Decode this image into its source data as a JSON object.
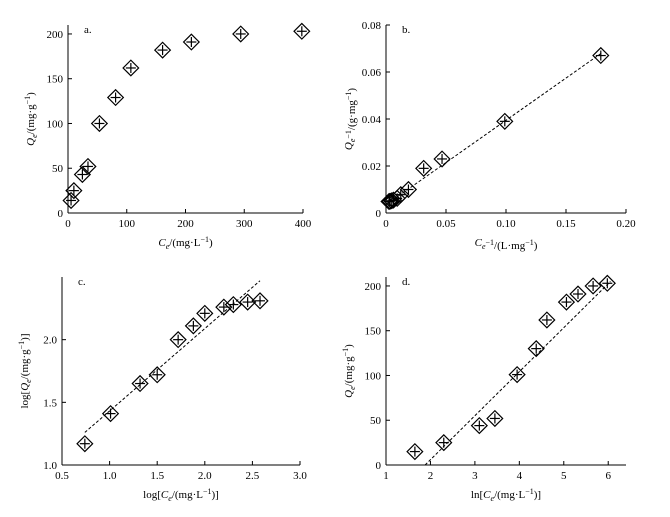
{
  "chart_data": [
    {
      "panel": "a.",
      "type": "scatter",
      "xlabel": {
        "main": "C",
        "sub": "e",
        "tail": "/(mg·L",
        "sup": "−1",
        "close": ")"
      },
      "ylabel": {
        "main": "Q",
        "sub": "e",
        "tail": "/(mg·g",
        "sup": "−1",
        "close": ")"
      },
      "xlim": [
        0,
        400
      ],
      "ylim": [
        0,
        210
      ],
      "xticks": [
        0,
        100,
        200,
        300,
        400
      ],
      "yticks": [
        0,
        50,
        100,
        150,
        200
      ],
      "xtick_labels": [
        "0",
        "100",
        "200",
        "300",
        "400"
      ],
      "ytick_labels": [
        "0",
        "50",
        "100",
        "150",
        "200"
      ],
      "x": [
        5.2,
        10.0,
        24.5,
        34.0,
        53.5,
        81.0,
        107.0,
        161.0,
        210.0,
        294.0,
        398.0
      ],
      "y": [
        14,
        25,
        43,
        52,
        100,
        129,
        162,
        182,
        191,
        200,
        203
      ],
      "fit": null
    },
    {
      "panel": "b.",
      "type": "scatter",
      "xlabel": {
        "main": "C",
        "sub": "e",
        "tail": "",
        "sup": "−1",
        "close": "/(L·mg",
        "sup2": "−1",
        "close2": ")"
      },
      "ylabel": {
        "main": "Q",
        "sub": "e",
        "tail": "",
        "sup": "−1",
        "close": "/(g·mg",
        "sup2": "−1",
        "close2": ")"
      },
      "xlim": [
        0,
        0.2
      ],
      "ylim": [
        0,
        0.08
      ],
      "xticks": [
        0,
        0.05,
        0.1,
        0.15,
        0.2
      ],
      "yticks": [
        0,
        0.02,
        0.04,
        0.06,
        0.08
      ],
      "xtick_labels": [
        "0",
        "0.05",
        "0.10",
        "0.15",
        "0.20"
      ],
      "ytick_labels": [
        "0",
        "0.02",
        "0.04",
        "0.06",
        "0.08"
      ],
      "x": [
        0.0025,
        0.0034,
        0.0048,
        0.0062,
        0.0093,
        0.0123,
        0.0187,
        0.0314,
        0.0467,
        0.099,
        0.179
      ],
      "y": [
        0.0049,
        0.005,
        0.0052,
        0.0055,
        0.0062,
        0.0078,
        0.01,
        0.019,
        0.023,
        0.039,
        0.067
      ],
      "fit": {
        "x": [
          0,
          0.18
        ],
        "y": [
          0.0035,
          0.0682
        ]
      }
    },
    {
      "panel": "c.",
      "type": "scatter",
      "xlabel": {
        "main": "log[",
        "ital": "C",
        "sub": "e",
        "tail": "/(mg·L",
        "sup": "−1",
        "close": ")]"
      },
      "ylabel": {
        "main": "log[",
        "ital": "Q",
        "sub": "e",
        "tail": "/(mg·g",
        "sup": "−1",
        "close": ")]"
      },
      "xlim": [
        0.5,
        3.0
      ],
      "ylim": [
        1.0,
        2.5
      ],
      "xticks": [
        0.5,
        1.0,
        1.5,
        2.0,
        2.5,
        3.0
      ],
      "yticks": [
        1.0,
        1.5,
        2.0
      ],
      "xtick_labels": [
        "0.5",
        "1.0",
        "1.5",
        "2.0",
        "2.5",
        "3.0"
      ],
      "ytick_labels": [
        "1.0",
        "1.5",
        "2.0"
      ],
      "x": [
        0.74,
        1.01,
        1.32,
        1.5,
        1.72,
        1.88,
        2.0,
        2.2,
        2.3,
        2.45,
        2.58
      ],
      "y": [
        1.17,
        1.41,
        1.65,
        1.72,
        2.0,
        2.11,
        2.21,
        2.26,
        2.28,
        2.3,
        2.31
      ],
      "fit": {
        "x": [
          0.74,
          2.58
        ],
        "y": [
          1.26,
          2.47
        ]
      }
    },
    {
      "panel": "d.",
      "type": "scatter",
      "xlabel": {
        "main": "ln[",
        "ital": "C",
        "sub": "e",
        "tail": "/(mg·L",
        "sup": "−1",
        "close": ")]"
      },
      "ylabel": {
        "main": "Q",
        "sub": "e",
        "tail": "/(mg·g",
        "sup": "−1",
        "close": ")"
      },
      "xlim": [
        1,
        6.4
      ],
      "ylim": [
        0,
        210
      ],
      "xticks": [
        1,
        2,
        3,
        4,
        5,
        6
      ],
      "yticks": [
        0,
        50,
        100,
        150,
        200
      ],
      "xtick_labels": [
        "1",
        "2",
        "3",
        "4",
        "5",
        "6"
      ],
      "ytick_labels": [
        "0",
        "50",
        "100",
        "150",
        "200"
      ],
      "x": [
        1.65,
        2.3,
        3.1,
        3.45,
        3.95,
        4.38,
        4.62,
        5.06,
        5.32,
        5.66,
        5.98
      ],
      "y": [
        15,
        25,
        44,
        52,
        101,
        130,
        162,
        182,
        191,
        200,
        203
      ],
      "fit": {
        "x": [
          1.88,
          6.05
        ],
        "y": [
          0,
          205
        ]
      }
    }
  ]
}
